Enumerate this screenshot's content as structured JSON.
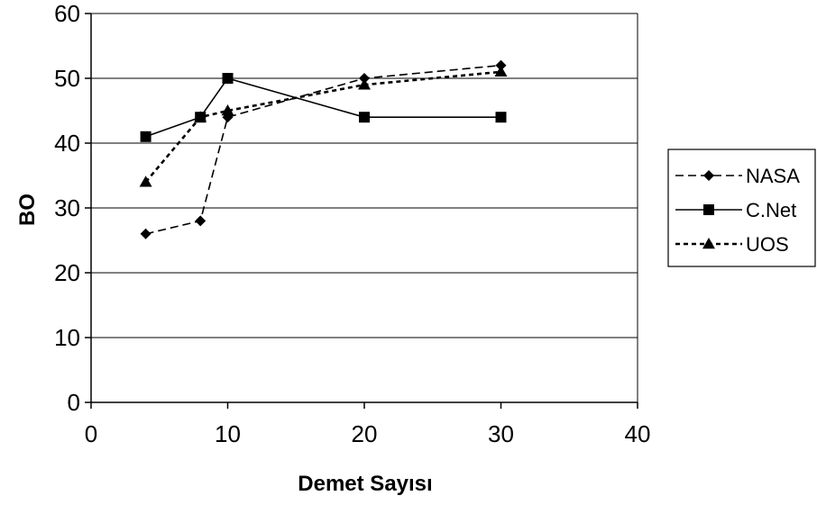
{
  "chart_data": {
    "type": "line",
    "title": "",
    "xlabel": "Demet Sayısı",
    "ylabel": "BO",
    "xlim": [
      0,
      40
    ],
    "ylim": [
      0,
      60
    ],
    "xticks": [
      0,
      10,
      20,
      30,
      40
    ],
    "yticks": [
      0,
      10,
      20,
      30,
      40,
      50,
      60
    ],
    "xtick_labels": [
      "0",
      "10",
      "20",
      "30",
      "40"
    ],
    "ytick_labels": [
      "0",
      "10",
      "20",
      "30",
      "40",
      "50",
      "60"
    ],
    "grid": "horizontal",
    "legend_position": "right",
    "series": [
      {
        "name": "NASA",
        "marker": "diamond",
        "line_style": "dashed",
        "color": "#000000",
        "x": [
          4,
          8,
          10,
          20,
          30
        ],
        "y": [
          26,
          28,
          44,
          50,
          52
        ]
      },
      {
        "name": "C.Net",
        "marker": "square",
        "line_style": "solid",
        "color": "#000000",
        "x": [
          4,
          8,
          10,
          20,
          30
        ],
        "y": [
          41,
          44,
          50,
          44,
          44
        ]
      },
      {
        "name": "UOS",
        "marker": "triangle",
        "line_style": "dotted",
        "color": "#000000",
        "x": [
          4,
          8,
          10,
          20,
          30
        ],
        "y": [
          34,
          44,
          45,
          49,
          51
        ]
      }
    ]
  }
}
